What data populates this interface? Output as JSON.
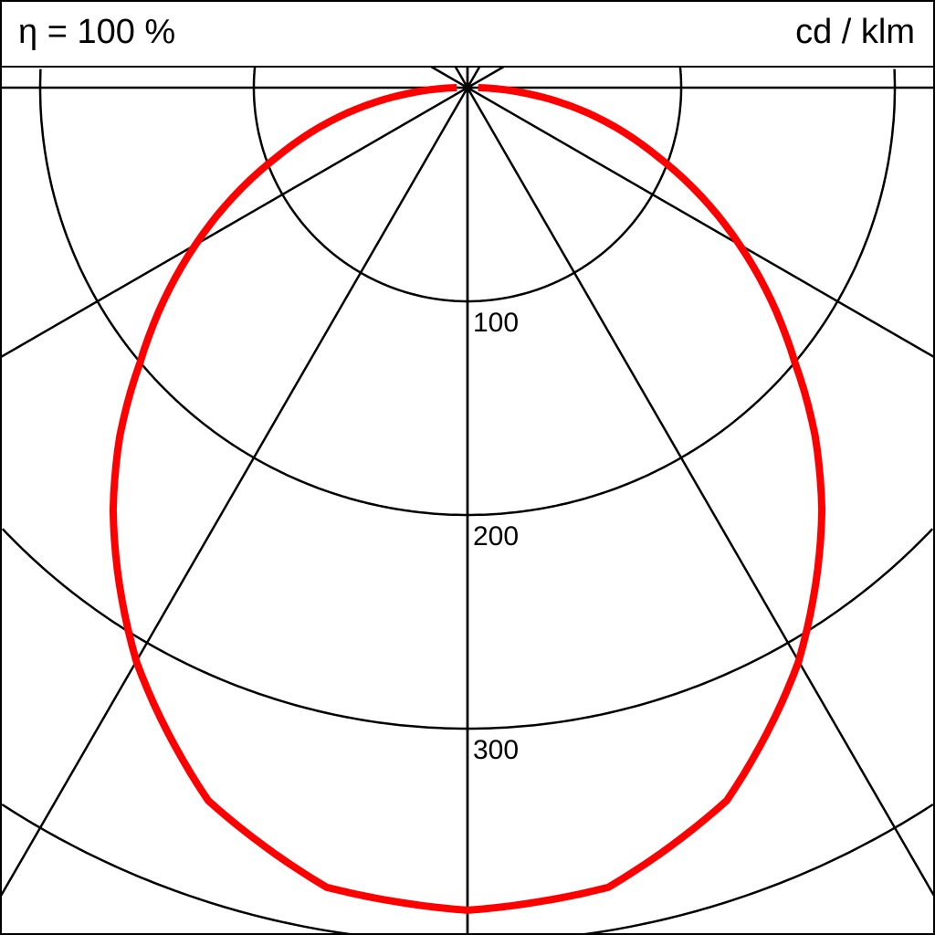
{
  "header": {
    "efficiency": "η = 100 %",
    "unit": "cd / klm"
  },
  "chart_data": {
    "type": "polar",
    "radial_ticks": [
      100,
      200,
      300,
      400
    ],
    "radial_tick_labels": [
      "100",
      "200",
      "300"
    ],
    "angle_rays_deg": [
      0,
      30,
      60,
      90,
      120,
      150,
      180
    ],
    "rmax": 400,
    "series": [
      {
        "color": "#ff0000",
        "angles_deg": [
          0,
          10,
          20,
          30,
          40,
          45,
          50,
          60,
          70,
          78,
          85,
          90
        ],
        "values": [
          385,
          380,
          355,
          310,
          258,
          230,
          200,
          147,
          95,
          58,
          25,
          5
        ]
      }
    ]
  }
}
